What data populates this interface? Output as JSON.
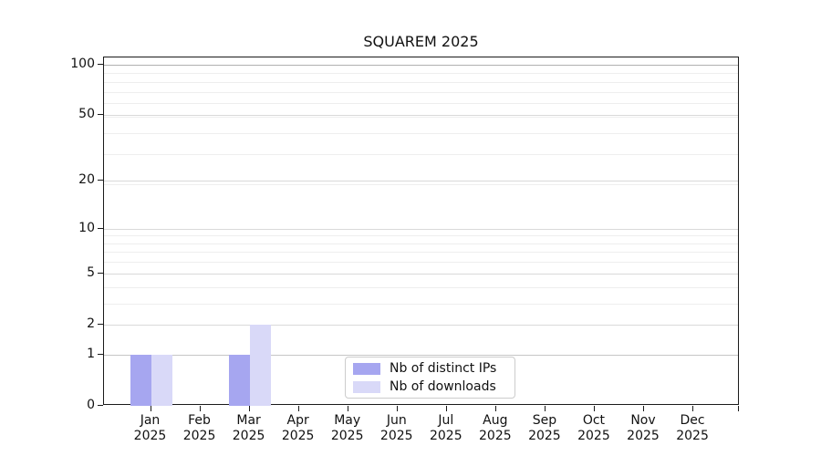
{
  "chart_data": {
    "type": "bar",
    "title": "SQUAREM 2025",
    "categories": [
      "Jan",
      "Feb",
      "Mar",
      "Apr",
      "May",
      "Jun",
      "Jul",
      "Aug",
      "Sep",
      "Oct",
      "Nov",
      "Dec"
    ],
    "year_label": "2025",
    "series": [
      {
        "name": "Nb of distinct IPs",
        "color": "#a6a6f0",
        "values": [
          1,
          0,
          1,
          0,
          0,
          0,
          0,
          0,
          0,
          0,
          0,
          0
        ]
      },
      {
        "name": "Nb of downloads",
        "color": "#d9d9f8",
        "values": [
          1,
          0,
          2,
          0,
          0,
          0,
          0,
          0,
          0,
          0,
          0,
          0
        ]
      }
    ],
    "y_ticks": [
      0,
      1,
      2,
      5,
      10,
      20,
      50,
      100
    ],
    "y_minor_ticks": [
      3,
      4,
      6,
      7,
      8,
      9,
      19,
      29,
      39,
      49,
      59,
      69,
      79,
      89
    ],
    "y_scale": "log1p",
    "ylim": [
      0,
      110
    ],
    "xlabel": "",
    "ylabel": "",
    "grid": "horizontal",
    "legend_position": "lower center",
    "colors": {
      "axis": "#1a1a1a",
      "grid_major_top": "#b0b0b0",
      "grid_labeled": "#d9d9d9",
      "grid_unit": "#c6c6c6",
      "grid_minor": "#eeeeee",
      "legend_border": "#cccccc"
    }
  }
}
